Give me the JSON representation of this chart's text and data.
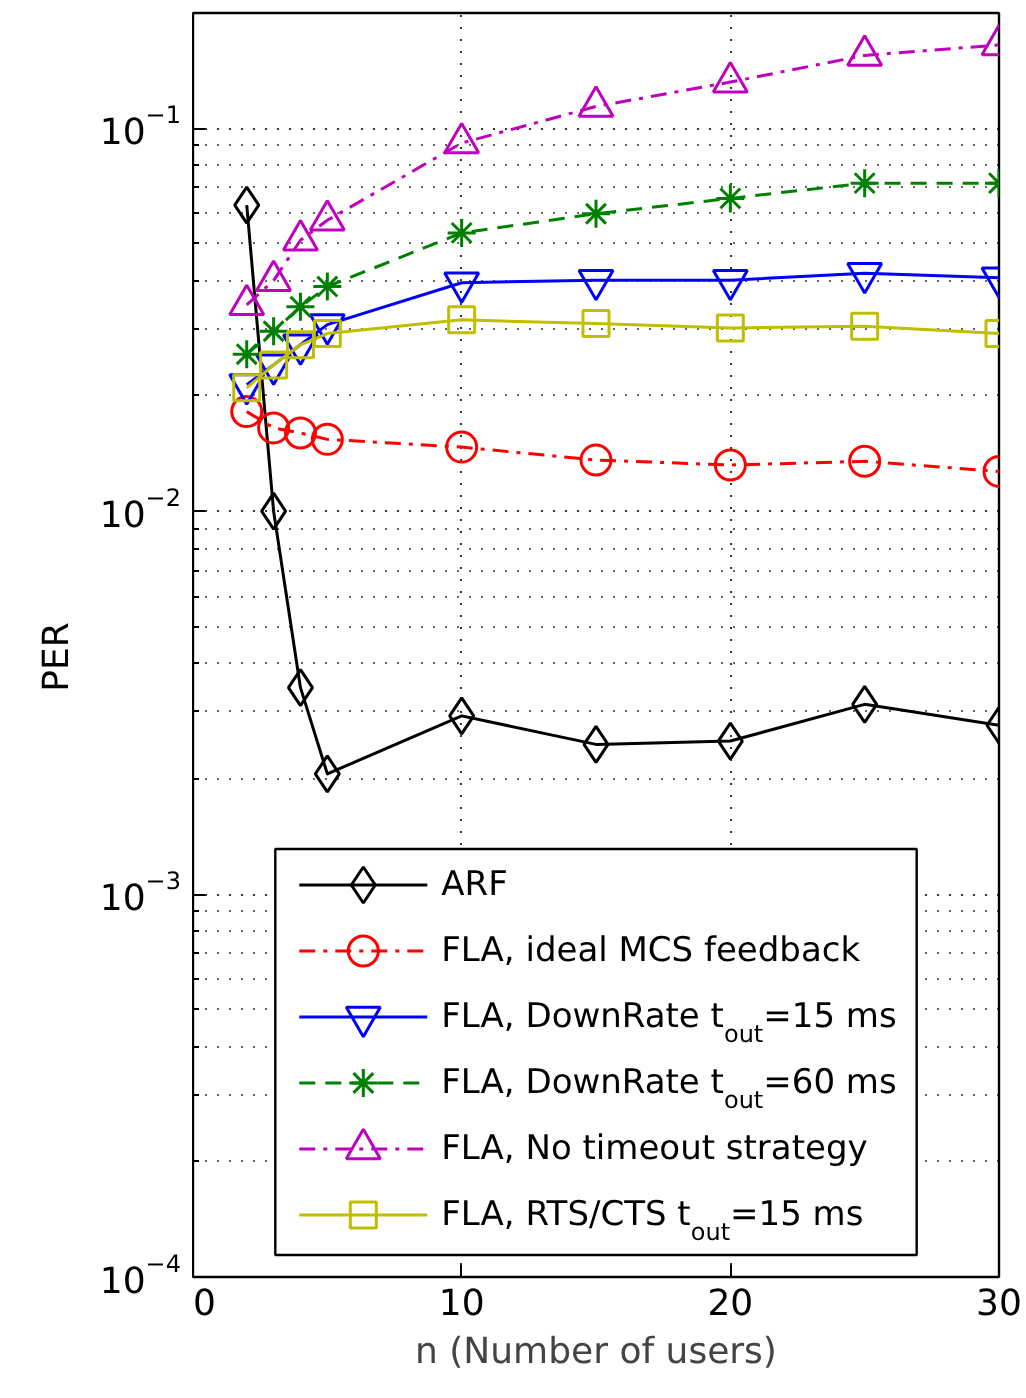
{
  "chart_data": {
    "type": "line",
    "xlabel": "n (Number of users)",
    "ylabel": "PER",
    "x": [
      2,
      3,
      4,
      5,
      10,
      15,
      20,
      25,
      30
    ],
    "xlim": [
      0,
      30
    ],
    "xticks": [
      0,
      10,
      20,
      30
    ],
    "ylim": [
      0.0001,
      0.2
    ],
    "yticks": [
      {
        "value": 0.0001,
        "label": "10$^{−4}$"
      },
      {
        "value": 0.001,
        "label": "10$^{−3}$"
      },
      {
        "value": 0.01,
        "label": "10$^{−2}$"
      },
      {
        "value": 0.1,
        "label": "10$^{−1}$"
      }
    ],
    "log": "y",
    "grid": true,
    "legend": "bottom",
    "series": [
      {
        "name": "ARF",
        "color": "#000000",
        "marker": "diamond",
        "line_style": "solid",
        "values": [
          0.063,
          0.01,
          0.00346,
          0.00206,
          0.00292,
          0.00246,
          0.00251,
          0.00313,
          0.00276
        ]
      },
      {
        "name": "FLA, ideal MCS feedback",
        "color": "#ff0000",
        "marker": "circle",
        "line_style": "dashdot",
        "values": [
          0.0182,
          0.0165,
          0.016,
          0.0154,
          0.0147,
          0.0136,
          0.0132,
          0.0135,
          0.0127
        ]
      },
      {
        "name": "FLA, DownRate t$_{out}$=15 ms",
        "color": "#0000ff",
        "marker": "triangle_down",
        "line_style": "solid",
        "values": [
          0.0214,
          0.0241,
          0.0272,
          0.0307,
          0.0395,
          0.0401,
          0.0401,
          0.0418,
          0.0407
        ]
      },
      {
        "name": "FLA, DownRate t$_{out}$=60 ms",
        "color": "#008000",
        "marker": "cross",
        "line_style": "dashed",
        "values": [
          0.0257,
          0.0295,
          0.0342,
          0.0386,
          0.0533,
          0.0598,
          0.0656,
          0.0719,
          0.0719
        ]
      },
      {
        "name": "FLA, No timeout strategy",
        "color": "#bf00bf",
        "marker": "triangle",
        "line_style": "dashdot",
        "values": [
          0.0346,
          0.04,
          0.051,
          0.0575,
          0.0915,
          0.114,
          0.132,
          0.155,
          0.165
        ]
      },
      {
        "name": "FLA, RTS/CTS t$_{out}$=15 ms",
        "color": "#bfbf00",
        "marker": "square",
        "line_style": "solid",
        "values": [
          0.021,
          0.0241,
          0.0272,
          0.0291,
          0.0316,
          0.0309,
          0.0301,
          0.0304,
          0.0291
        ]
      }
    ]
  }
}
